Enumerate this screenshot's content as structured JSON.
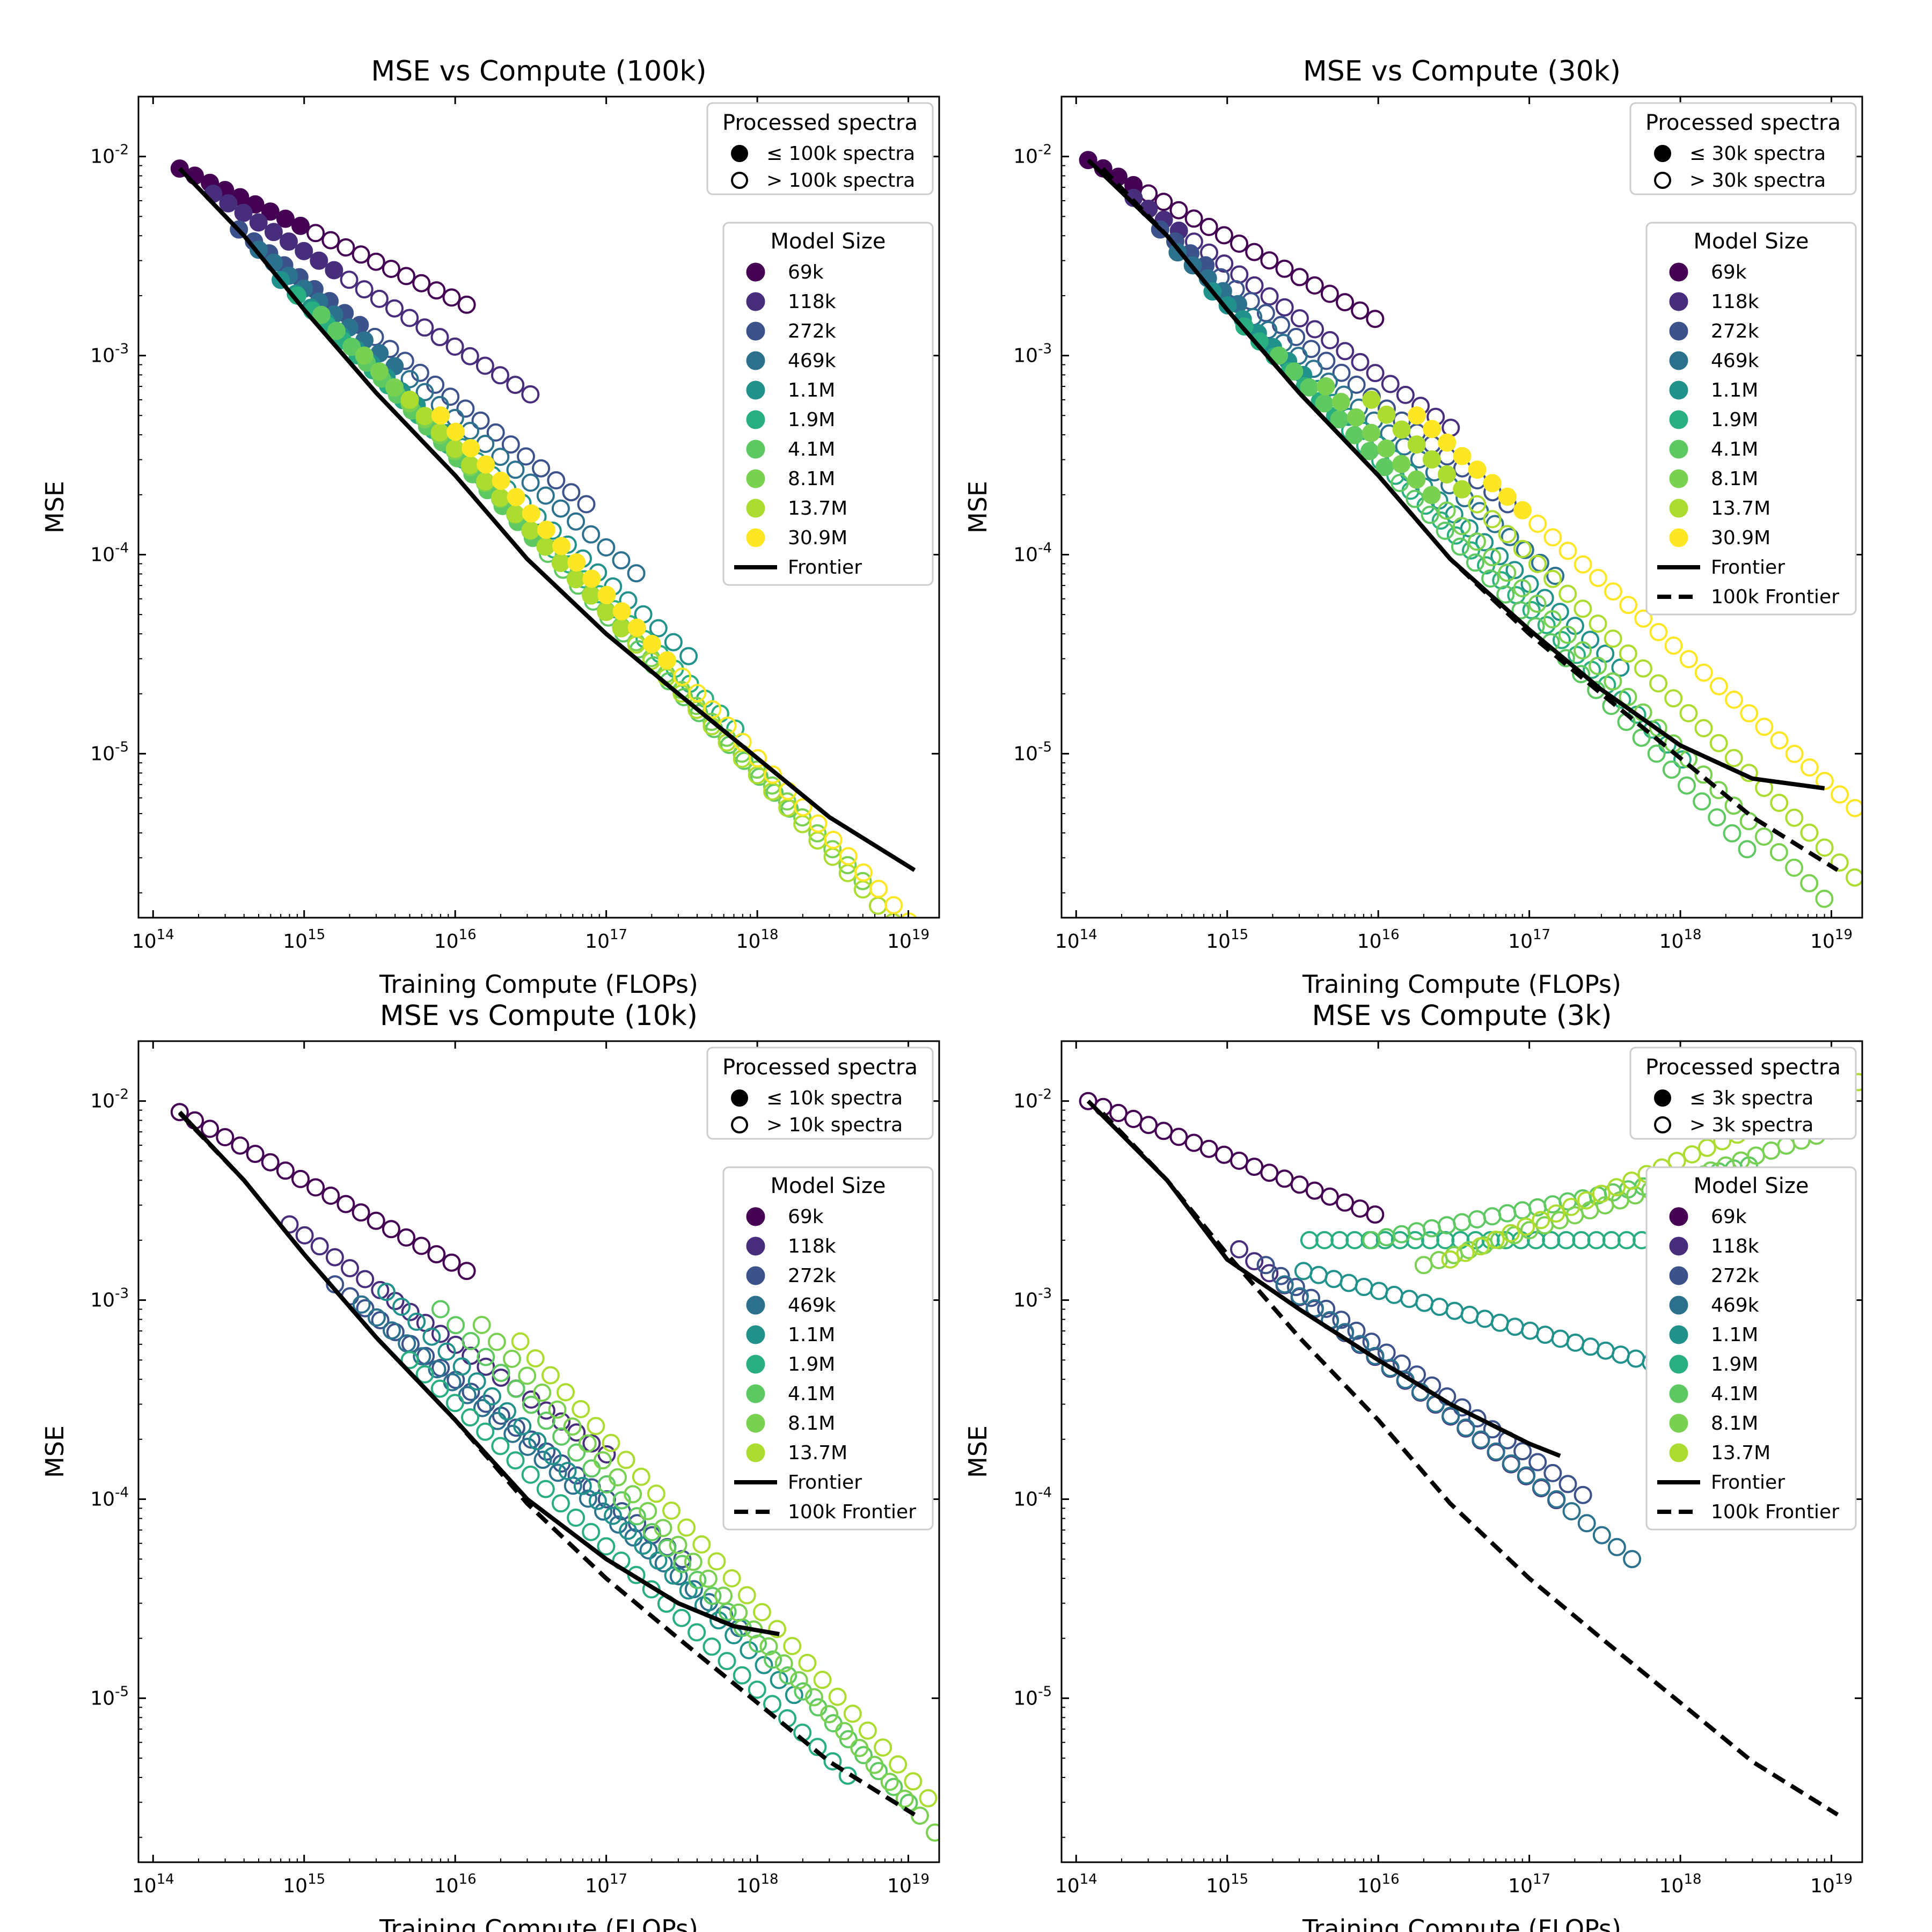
{
  "colors": {
    "69k": "#440154",
    "118k": "#472d7b",
    "272k": "#3b528b",
    "469k": "#2c728e",
    "1.1M": "#21918c",
    "1.9M": "#28ae80",
    "4.1M": "#5ec962",
    "8.1M": "#7ad151",
    "13.7M": "#addc30",
    "30.9M": "#fde725",
    "frontier": "#000000"
  },
  "chart_data": [
    {
      "type": "scatter",
      "title": "MSE vs Compute (100k)",
      "xlabel": "Training Compute (FLOPs)",
      "ylabel": "MSE",
      "xscale": "log",
      "yscale": "log",
      "xlim": [
        80000000000000.0,
        1.6e+19
      ],
      "ylim": [
        1.5e-06,
        0.02
      ],
      "xticks": [
        "10^14",
        "10^15",
        "10^16",
        "10^17",
        "10^18",
        "10^19"
      ],
      "yticks": [
        "10^-5",
        "10^-4",
        "10^-3",
        "10^-2"
      ],
      "processed_legend": {
        "title": "Processed spectra",
        "filled": "≤ 100k spectra",
        "hollow": "> 100k spectra"
      },
      "size_legend_title": "Model Size",
      "legend_lines": [
        "Frontier"
      ],
      "series": [
        {
          "name": "69k",
          "x0": 150000000000000.0,
          "y0": 0.0087,
          "n": 20,
          "step": 0.1,
          "slope": -0.36,
          "threshold": 1000000000000000.0
        },
        {
          "name": "118k",
          "x0": 250000000000000.0,
          "y0": 0.0065,
          "n": 22,
          "step": 0.1,
          "slope": -0.48,
          "threshold": 1700000000000000.0
        },
        {
          "name": "272k",
          "x0": 370000000000000.0,
          "y0": 0.0043,
          "n": 24,
          "step": 0.1,
          "slope": -0.6,
          "threshold": 2800000000000000.0
        },
        {
          "name": "469k",
          "x0": 500000000000000.0,
          "y0": 0.0034,
          "n": 26,
          "step": 0.1,
          "slope": -0.65,
          "threshold": 4800000000000000.0
        },
        {
          "name": "1.1M",
          "x0": 700000000000000.0,
          "y0": 0.0024,
          "n": 28,
          "step": 0.1,
          "slope": -0.7,
          "threshold": 1.1e+16
        },
        {
          "name": "1.9M",
          "x0": 900000000000000.0,
          "y0": 0.002,
          "n": 30,
          "step": 0.1,
          "slope": -0.75,
          "threshold": 1.9e+16
        },
        {
          "name": "4.1M",
          "x0": 1300000000000000.0,
          "y0": 0.0016,
          "n": 32,
          "step": 0.1,
          "slope": -0.8,
          "threshold": 4.1e+16
        },
        {
          "name": "8.1M",
          "x0": 2500000000000000.0,
          "y0": 0.001,
          "n": 34,
          "step": 0.1,
          "slope": -0.8,
          "threshold": 8.1e+16
        },
        {
          "name": "13.7M",
          "x0": 5000000000000000.0,
          "y0": 0.0006,
          "n": 34,
          "step": 0.1,
          "slope": -0.82,
          "threshold": 1.37e+17
        },
        {
          "name": "30.9M",
          "x0": 8000000000000000.0,
          "y0": 0.0005,
          "n": 40,
          "step": 0.1,
          "slope": -0.82,
          "threshold": 3.09e+17
        }
      ],
      "frontier": {
        "x": [
          150000000000000.0,
          400000000000000.0,
          1000000000000000.0,
          3000000000000000.0,
          1e+16,
          3e+16,
          1e+17,
          3e+17,
          1e+18,
          3e+18,
          1.1e+19
        ],
        "y": [
          0.0087,
          0.004,
          0.0017,
          0.00065,
          0.00025,
          9.5e-05,
          4e-05,
          2e-05,
          9.5e-06,
          4.8e-06,
          2.6e-06
        ]
      }
    },
    {
      "type": "scatter",
      "title": "MSE vs Compute (30k)",
      "xlabel": "Training Compute (FLOPs)",
      "ylabel": "MSE",
      "xscale": "log",
      "yscale": "log",
      "xlim": [
        80000000000000.0,
        1.6e+19
      ],
      "ylim": [
        1.5e-06,
        0.02
      ],
      "xticks": [
        "10^14",
        "10^15",
        "10^16",
        "10^17",
        "10^18",
        "10^19"
      ],
      "yticks": [
        "10^-5",
        "10^-4",
        "10^-3",
        "10^-2"
      ],
      "processed_legend": {
        "title": "Processed spectra",
        "filled": "≤ 30k spectra",
        "hollow": "> 30k spectra"
      },
      "size_legend_title": "Model Size",
      "legend_lines": [
        "Frontier",
        "100k Frontier"
      ],
      "series": [
        {
          "name": "69k",
          "x0": 120000000000000.0,
          "y0": 0.0096,
          "n": 20,
          "step": 0.1,
          "slope": -0.42,
          "threshold": 300000000000000.0
        },
        {
          "name": "118k",
          "x0": 240000000000000.0,
          "y0": 0.0062,
          "n": 22,
          "step": 0.1,
          "slope": -0.55,
          "threshold": 500000000000000.0
        },
        {
          "name": "272k",
          "x0": 360000000000000.0,
          "y0": 0.0043,
          "n": 24,
          "step": 0.1,
          "slope": -0.6,
          "threshold": 820000000000000.0
        },
        {
          "name": "469k",
          "x0": 470000000000000.0,
          "y0": 0.0033,
          "n": 26,
          "step": 0.1,
          "slope": -0.65,
          "threshold": 1400000000000000.0
        },
        {
          "name": "1.1M",
          "x0": 800000000000000.0,
          "y0": 0.0021,
          "n": 28,
          "step": 0.1,
          "slope": -0.7,
          "threshold": 3300000000000000.0
        },
        {
          "name": "1.9M",
          "x0": 1300000000000000.0,
          "y0": 0.0014,
          "n": 30,
          "step": 0.1,
          "slope": -0.75,
          "threshold": 5700000000000000.0
        },
        {
          "name": "4.1M",
          "x0": 2200000000000000.0,
          "y0": 0.001,
          "n": 32,
          "step": 0.1,
          "slope": -0.8,
          "threshold": 1.2e+16
        },
        {
          "name": "8.1M",
          "x0": 4500000000000000.0,
          "y0": 0.0007,
          "n": 34,
          "step": 0.1,
          "slope": -0.78,
          "threshold": 2.4e+16
        },
        {
          "name": "13.7M",
          "x0": 9000000000000000.0,
          "y0": 0.0006,
          "n": 34,
          "step": 0.1,
          "slope": -0.75,
          "threshold": 4.1e+16
        },
        {
          "name": "30.9M",
          "x0": 1.8e+16,
          "y0": 0.0005,
          "n": 40,
          "step": 0.1,
          "slope": -0.68,
          "threshold": 9.3e+16
        }
      ],
      "frontier": {
        "x": [
          120000000000000.0,
          400000000000000.0,
          1000000000000000.0,
          3000000000000000.0,
          1e+16,
          3e+16,
          1e+17,
          3e+17,
          1e+18,
          3e+18,
          9e+18
        ],
        "y": [
          0.0096,
          0.004,
          0.0017,
          0.00065,
          0.00025,
          9.5e-05,
          4.2e-05,
          2.1e-05,
          1.1e-05,
          7.5e-06,
          6.7e-06
        ]
      },
      "frontier_100k": {
        "x": [
          150000000000000.0,
          400000000000000.0,
          1000000000000000.0,
          3000000000000000.0,
          1e+16,
          3e+16,
          1e+17,
          3e+17,
          1e+18,
          3e+18,
          1.1e+19
        ],
        "y": [
          0.0087,
          0.004,
          0.0017,
          0.00065,
          0.00025,
          9.5e-05,
          4e-05,
          2e-05,
          9.5e-06,
          4.8e-06,
          2.6e-06
        ]
      }
    },
    {
      "type": "scatter",
      "title": "MSE vs Compute (10k)",
      "xlabel": "Training Compute (FLOPs)",
      "ylabel": "MSE",
      "xscale": "log",
      "yscale": "log",
      "xlim": [
        80000000000000.0,
        1.6e+19
      ],
      "ylim": [
        1.5e-06,
        0.02
      ],
      "xticks": [
        "10^14",
        "10^15",
        "10^16",
        "10^17",
        "10^18",
        "10^19"
      ],
      "yticks": [
        "10^-5",
        "10^-4",
        "10^-3",
        "10^-2"
      ],
      "processed_legend": {
        "title": "Processed spectra",
        "filled": "≤ 10k spectra",
        "hollow": "> 10k spectra"
      },
      "size_legend_title": "Model Size",
      "legend_lines": [
        "Frontier",
        "100k Frontier"
      ],
      "series": [
        {
          "name": "69k",
          "x0": 150000000000000.0,
          "y0": 0.0088,
          "n": 20,
          "step": 0.1,
          "slope": -0.42,
          "threshold": 100000000000000.0
        },
        {
          "name": "118k",
          "x0": 800000000000000.0,
          "y0": 0.0024,
          "n": 22,
          "step": 0.1,
          "slope": -0.55,
          "threshold": 100000000000000.0
        },
        {
          "name": "272k",
          "x0": 1600000000000000.0,
          "y0": 0.0012,
          "n": 24,
          "step": 0.1,
          "slope": -0.6,
          "threshold": 100000000000000.0
        },
        {
          "name": "469k",
          "x0": 2400000000000000.0,
          "y0": 0.00095,
          "n": 26,
          "step": 0.1,
          "slope": -0.65,
          "threshold": 100000000000000.0
        },
        {
          "name": "1.1M",
          "x0": 3500000000000000.0,
          "y0": 0.0011,
          "n": 28,
          "step": 0.1,
          "slope": -0.75,
          "threshold": 100000000000000.0
        },
        {
          "name": "1.9M",
          "x0": 5000000000000000.0,
          "y0": 0.0005,
          "n": 30,
          "step": 0.1,
          "slope": -0.72,
          "threshold": 100000000000000.0
        },
        {
          "name": "4.1M",
          "x0": 8000000000000000.0,
          "y0": 0.0009,
          "n": 32,
          "step": 0.1,
          "slope": -0.8,
          "threshold": 100000000000000.0
        },
        {
          "name": "8.1M",
          "x0": 1.5e+16,
          "y0": 0.00075,
          "n": 34,
          "step": 0.1,
          "slope": -0.85,
          "threshold": 100000000000000.0
        },
        {
          "name": "13.7M",
          "x0": 2.7e+16,
          "y0": 0.00062,
          "n": 34,
          "step": 0.1,
          "slope": -0.85,
          "threshold": 100000000000000.0
        }
      ],
      "frontier": {
        "x": [
          150000000000000.0,
          400000000000000.0,
          1000000000000000.0,
          3000000000000000.0,
          1e+16,
          3e+16,
          1e+17,
          3e+17,
          7e+17,
          1.4e+18
        ],
        "y": [
          0.0088,
          0.004,
          0.0017,
          0.00065,
          0.00025,
          0.0001,
          5e-05,
          3e-05,
          2.3e-05,
          2.1e-05
        ]
      },
      "frontier_100k": {
        "x": [
          150000000000000.0,
          400000000000000.0,
          1000000000000000.0,
          3000000000000000.0,
          1e+16,
          3e+16,
          1e+17,
          3e+17,
          1e+18,
          3e+18,
          1.1e+19
        ],
        "y": [
          0.0087,
          0.004,
          0.0017,
          0.00065,
          0.00025,
          9.5e-05,
          4e-05,
          2e-05,
          9.5e-06,
          4.8e-06,
          2.6e-06
        ]
      }
    },
    {
      "type": "scatter",
      "title": "MSE vs Compute (3k)",
      "xlabel": "Training Compute (FLOPs)",
      "ylabel": "MSE",
      "xscale": "log",
      "yscale": "log",
      "xlim": [
        80000000000000.0,
        1.6e+19
      ],
      "ylim": [
        1.5e-06,
        0.02
      ],
      "xticks": [
        "10^14",
        "10^15",
        "10^16",
        "10^17",
        "10^18",
        "10^19"
      ],
      "yticks": [
        "10^-5",
        "10^-4",
        "10^-3",
        "10^-2"
      ],
      "processed_legend": {
        "title": "Processed spectra",
        "filled": "≤ 3k spectra",
        "hollow": "> 3k spectra"
      },
      "size_legend_title": "Model Size",
      "legend_lines": [
        "Frontier",
        "100k Frontier"
      ],
      "series": [
        {
          "name": "69k",
          "x0": 120000000000000.0,
          "y0": 0.01,
          "n": 20,
          "step": 0.1,
          "slope": -0.3,
          "threshold": 100000000000000.0
        },
        {
          "name": "118k",
          "x0": 1200000000000000.0,
          "y0": 0.0018,
          "n": 22,
          "step": 0.1,
          "slope": -0.6,
          "threshold": 100000000000000.0
        },
        {
          "name": "272k",
          "x0": 1800000000000000.0,
          "y0": 0.0015,
          "n": 22,
          "step": 0.1,
          "slope": -0.55,
          "threshold": 100000000000000.0
        },
        {
          "name": "469k",
          "x0": 2400000000000000.0,
          "y0": 0.0012,
          "n": 24,
          "step": 0.1,
          "slope": -0.6,
          "threshold": 100000000000000.0
        },
        {
          "name": "1.1M",
          "x0": 3200000000000000.0,
          "y0": 0.0014,
          "n": 24,
          "step": 0.1,
          "slope": -0.2,
          "threshold": 100000000000000.0
        },
        {
          "name": "1.9M",
          "x0": 3500000000000000.0,
          "y0": 0.002,
          "n": 26,
          "step": 0.1,
          "slope": 0.0,
          "threshold": 100000000000000.0
        },
        {
          "name": "4.1M",
          "x0": 9000000000000000.0,
          "y0": 0.002,
          "n": 26,
          "step": 0.1,
          "slope": 0.15,
          "threshold": 100000000000000.0
        },
        {
          "name": "8.1M",
          "x0": 2e+16,
          "y0": 0.0015,
          "n": 28,
          "step": 0.1,
          "slope": 0.25,
          "threshold": 100000000000000.0
        },
        {
          "name": "13.7M",
          "x0": 3e+16,
          "y0": 0.0016,
          "n": 30,
          "step": 0.1,
          "slope": 0.33,
          "threshold": 100000000000000.0
        }
      ],
      "frontier": {
        "x": [
          120000000000000.0,
          400000000000000.0,
          1000000000000000.0,
          3000000000000000.0,
          1e+16,
          3e+16,
          1e+17,
          1.6e+17
        ],
        "y": [
          0.01,
          0.004,
          0.0016,
          0.0009,
          0.0005,
          0.0003,
          0.00019,
          0.000165
        ]
      },
      "frontier_100k": {
        "x": [
          150000000000000.0,
          400000000000000.0,
          1000000000000000.0,
          3000000000000000.0,
          1e+16,
          3e+16,
          1e+17,
          3e+17,
          1e+18,
          3e+18,
          1.1e+19
        ],
        "y": [
          0.0087,
          0.004,
          0.0017,
          0.00065,
          0.00025,
          9.5e-05,
          4e-05,
          2e-05,
          9.5e-06,
          4.8e-06,
          2.6e-06
        ]
      }
    }
  ]
}
